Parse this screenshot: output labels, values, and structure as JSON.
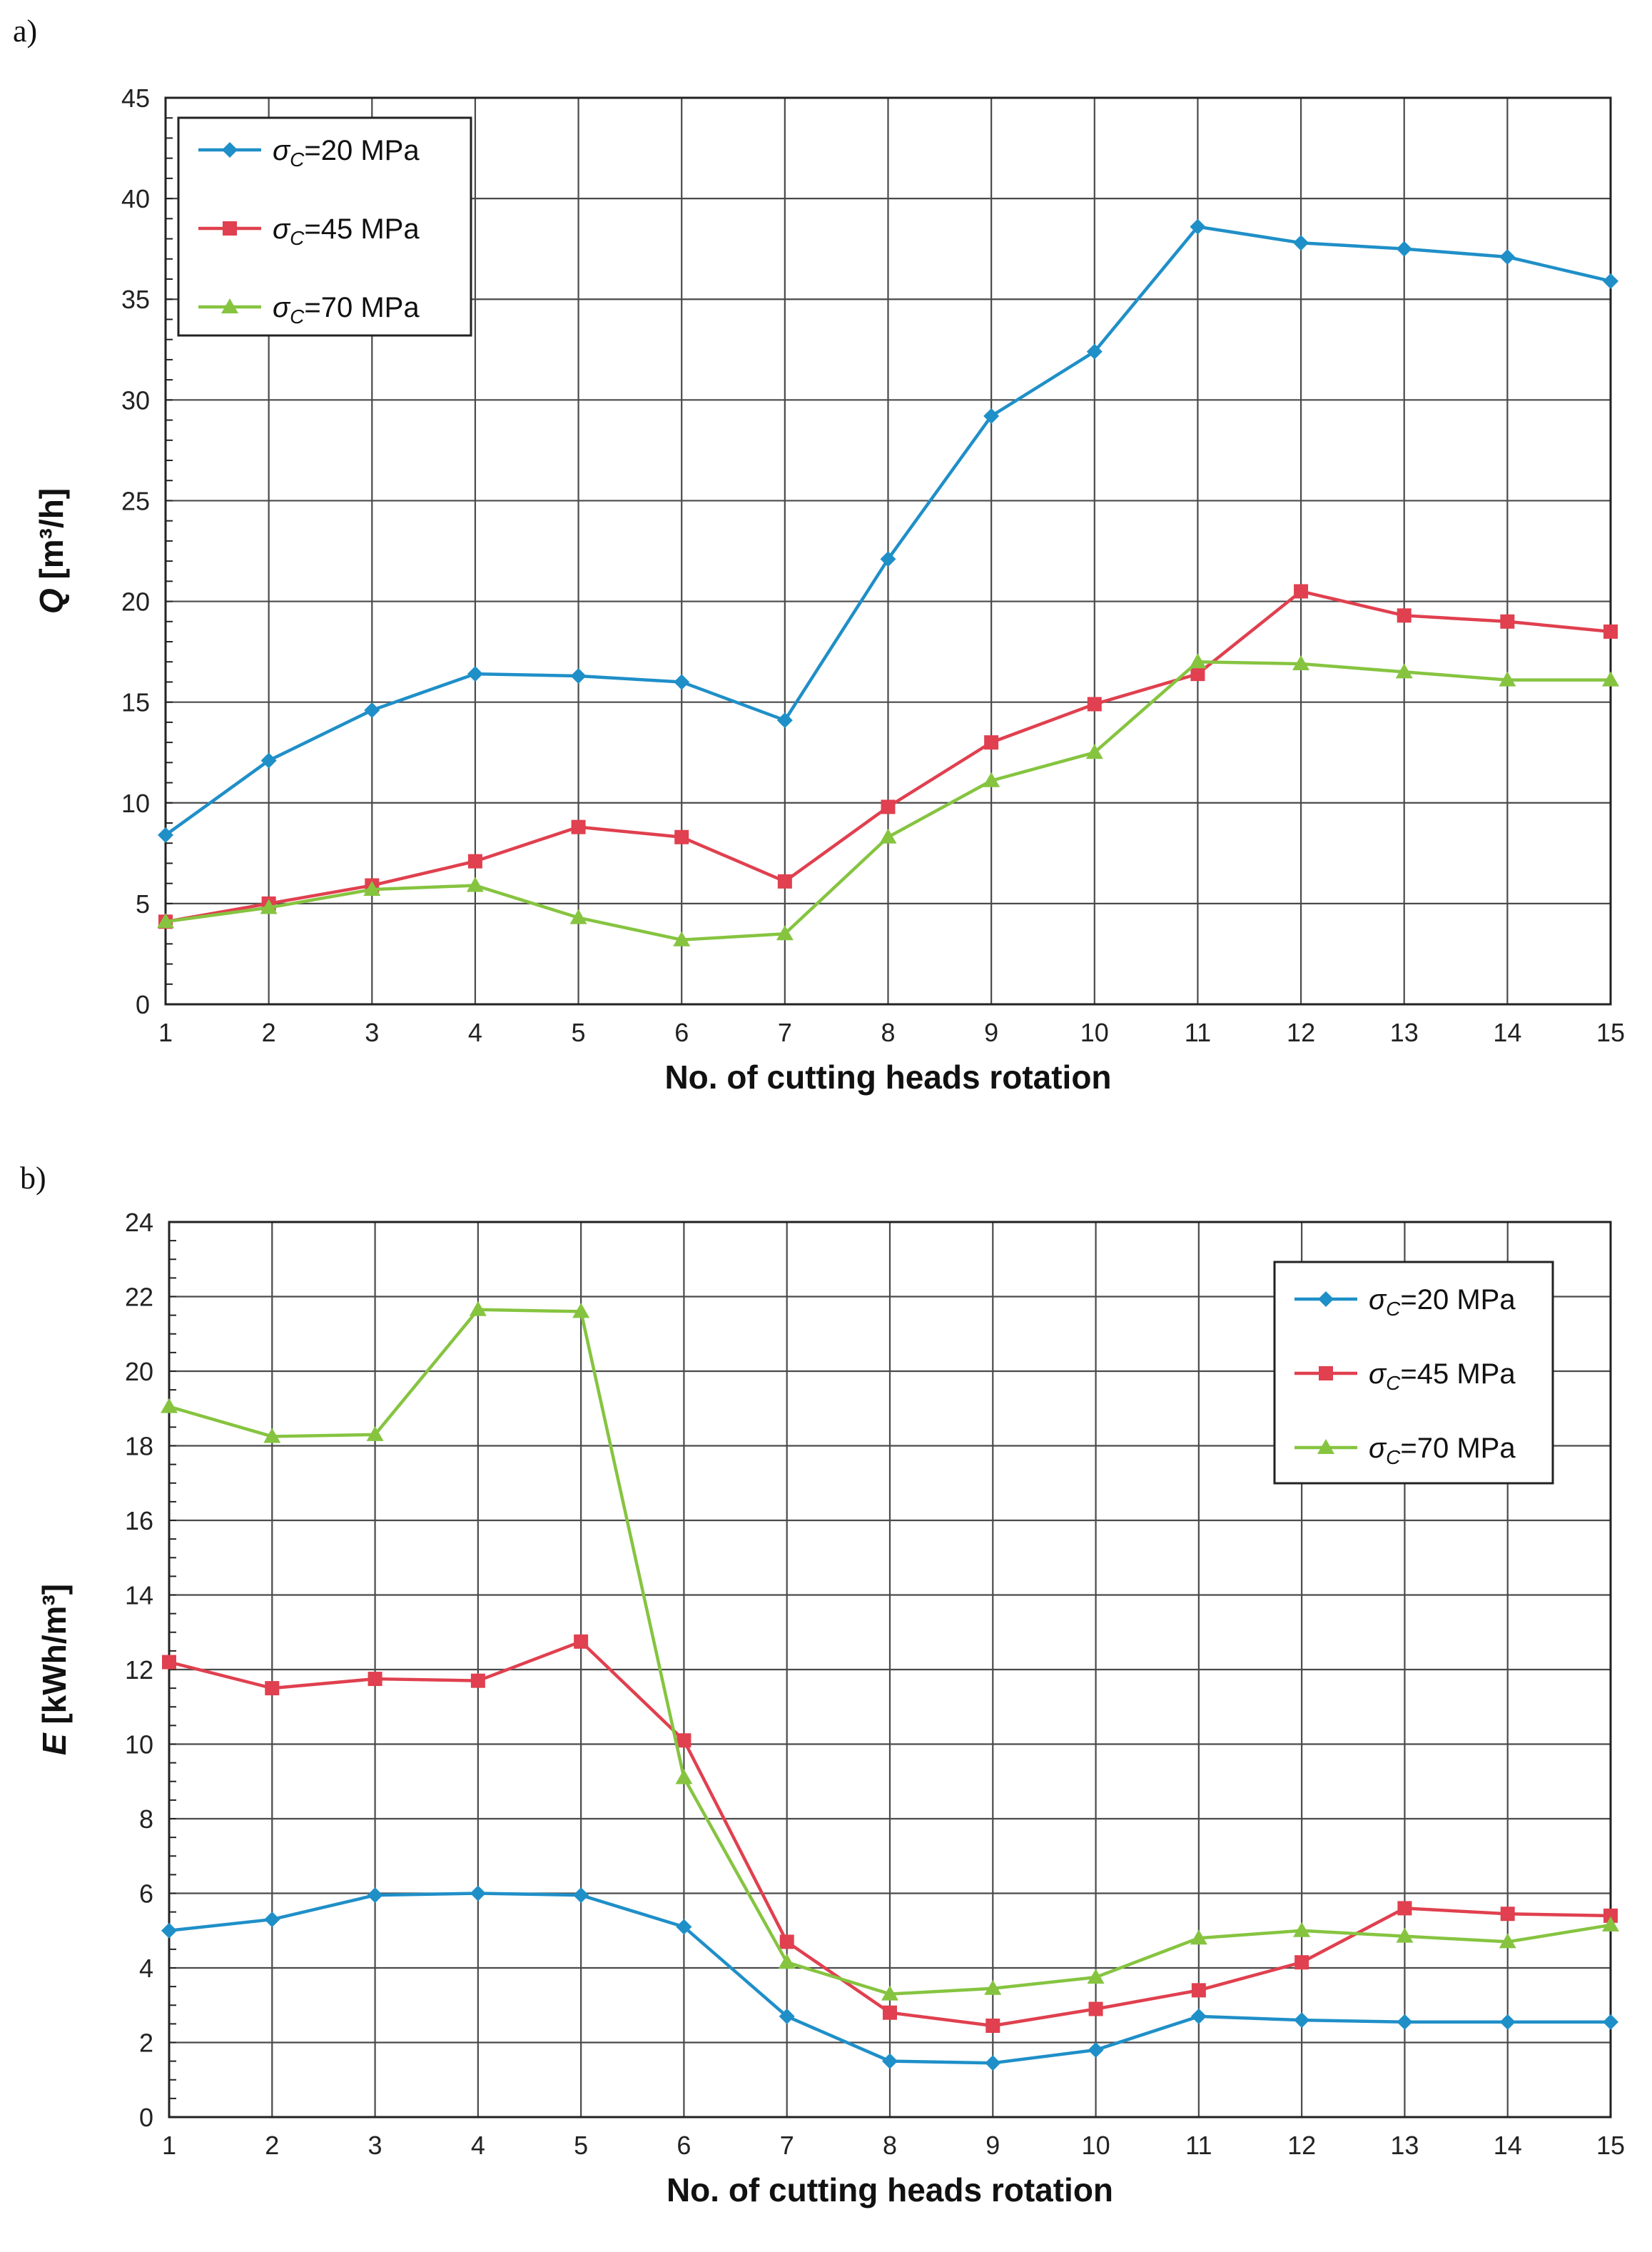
{
  "chart_data": [
    {
      "panel": "a)",
      "type": "line",
      "xlabel": "No. of cutting heads rotation",
      "ylabel": "Q [m³/h]",
      "ylabel_var": "Q",
      "ylabel_unit": " [m³/h]",
      "x": [
        1,
        2,
        3,
        4,
        5,
        6,
        7,
        8,
        9,
        10,
        11,
        12,
        13,
        14,
        15
      ],
      "ylim": [
        0,
        45
      ],
      "ystep": 5,
      "legend_position": "top-left",
      "series": [
        {
          "name": "σC=20 MPa",
          "sym": "σ",
          "sub": "C",
          "rest": "=20 MPa",
          "color": "#1f8fc8",
          "marker": "diamond",
          "values": [
            8.4,
            12.1,
            14.6,
            16.4,
            16.3,
            16.0,
            14.1,
            22.1,
            29.2,
            32.4,
            38.6,
            37.8,
            37.5,
            37.1,
            35.9
          ]
        },
        {
          "name": "σC=45 MPa",
          "sym": "σ",
          "sub": "C",
          "rest": "=45 MPa",
          "color": "#e0404f",
          "marker": "square",
          "values": [
            4.1,
            5.0,
            5.9,
            7.1,
            8.8,
            8.3,
            6.1,
            9.8,
            13.0,
            14.9,
            16.4,
            20.5,
            19.3,
            19.0,
            18.5
          ]
        },
        {
          "name": "σC=70 MPa",
          "sym": "σ",
          "sub": "C",
          "rest": "=70 MPa",
          "color": "#86c440",
          "marker": "triangle",
          "values": [
            4.1,
            4.8,
            5.7,
            5.9,
            4.3,
            3.2,
            3.5,
            8.3,
            11.1,
            12.5,
            17.0,
            16.9,
            16.5,
            16.1,
            16.1
          ]
        }
      ]
    },
    {
      "panel": "b)",
      "type": "line",
      "xlabel": "No. of cutting heads rotation",
      "ylabel": "E [kWh/m³]",
      "ylabel_var": "E",
      "ylabel_unit": " [kWh/m³]",
      "x": [
        1,
        2,
        3,
        4,
        5,
        6,
        7,
        8,
        9,
        10,
        11,
        12,
        13,
        14,
        15
      ],
      "ylim": [
        0,
        24
      ],
      "ystep": 2,
      "legend_position": "top-right",
      "series": [
        {
          "name": "σC=20 MPa",
          "sym": "σ",
          "sub": "C",
          "rest": "=20 MPa",
          "color": "#1f8fc8",
          "marker": "diamond",
          "values": [
            5.0,
            5.3,
            5.95,
            6.0,
            5.95,
            5.1,
            2.7,
            1.5,
            1.45,
            1.8,
            2.7,
            2.6,
            2.55,
            2.55,
            2.55
          ]
        },
        {
          "name": "σC=45 MPa",
          "sym": "σ",
          "sub": "C",
          "rest": "=45 MPa",
          "color": "#e0404f",
          "marker": "square",
          "values": [
            12.2,
            11.5,
            11.75,
            11.7,
            12.75,
            10.1,
            4.7,
            2.8,
            2.45,
            2.9,
            3.4,
            4.15,
            5.6,
            5.45,
            5.4
          ]
        },
        {
          "name": "σC=70 MPa",
          "sym": "σ",
          "sub": "C",
          "rest": "=70 MPa",
          "color": "#86c440",
          "marker": "triangle",
          "values": [
            19.05,
            18.25,
            18.3,
            21.65,
            21.6,
            9.1,
            4.15,
            3.3,
            3.45,
            3.75,
            4.8,
            5.0,
            4.85,
            4.7,
            5.15
          ]
        }
      ]
    }
  ]
}
